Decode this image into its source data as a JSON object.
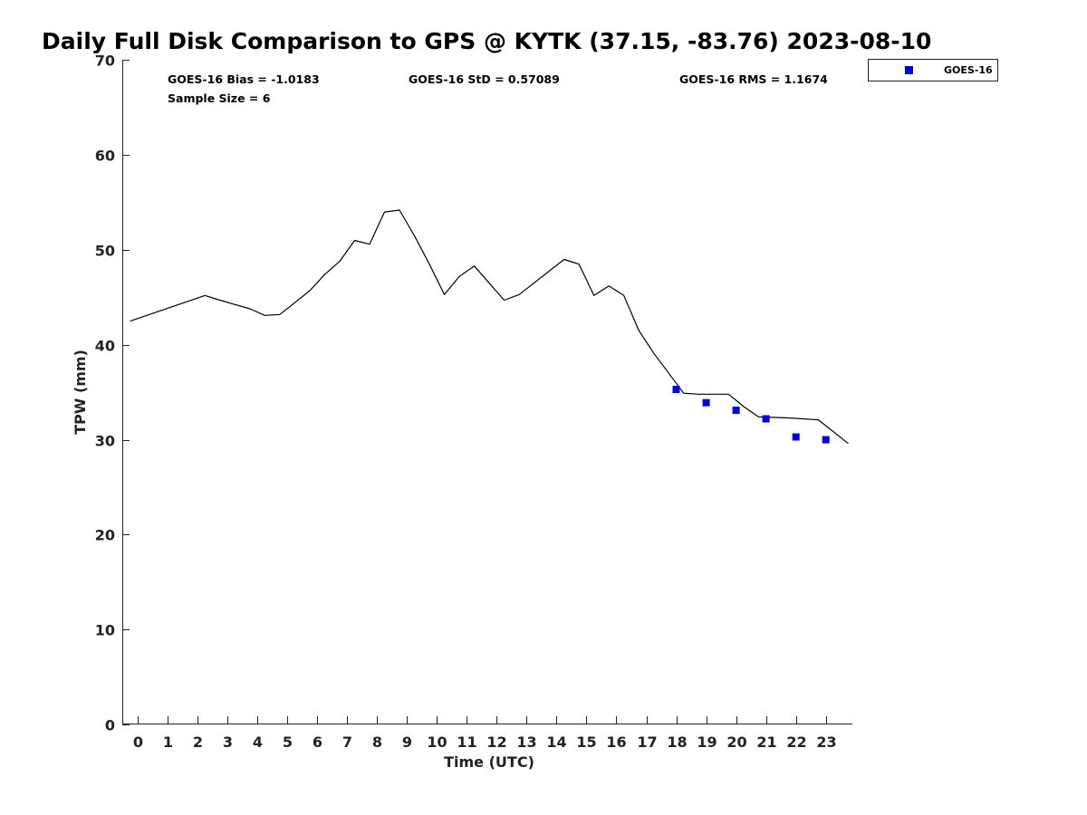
{
  "chart_data": {
    "type": "line",
    "title": "Daily Full Disk Comparison to GPS @ KYTK (37.15, -83.76) 2023-08-10",
    "xlabel": "Time (UTC)",
    "ylabel": "TPW (mm)",
    "xlim": [
      -0.5,
      23.75
    ],
    "ylim": [
      0,
      70
    ],
    "xticks": [
      0,
      1,
      2,
      3,
      4,
      5,
      6,
      7,
      8,
      9,
      10,
      11,
      12,
      13,
      14,
      15,
      16,
      17,
      18,
      19,
      20,
      21,
      22,
      23
    ],
    "yticks": [
      0,
      10,
      20,
      30,
      40,
      50,
      60,
      70
    ],
    "grid": false,
    "legend_position": "top-right",
    "stats": {
      "bias": "GOES-16 Bias = -1.0183",
      "std": "GOES-16 StD = 0.57089",
      "rms": "GOES-16 RMS = 1.1674",
      "sample": "Sample Size = 6"
    },
    "series": [
      {
        "type": "line",
        "color": "#000000",
        "x": [
          -0.25,
          2.25,
          2.75,
          3.75,
          4.25,
          4.75,
          5.75,
          6.25,
          6.75,
          7.25,
          7.75,
          8.25,
          8.75,
          9.25,
          9.75,
          10.25,
          10.75,
          11.25,
          12.25,
          12.75,
          14.25,
          14.75,
          15.25,
          15.75,
          16.25,
          16.75,
          17.25,
          17.75,
          18.25,
          18.75,
          19.75,
          20.25,
          20.75,
          21.75,
          22.75,
          23.75
        ],
        "y": [
          42.5,
          45.2,
          44.7,
          43.8,
          43.1,
          43.2,
          45.7,
          47.4,
          48.8,
          51.0,
          50.6,
          54.0,
          54.2,
          51.5,
          48.5,
          45.3,
          47.2,
          48.3,
          44.7,
          45.3,
          49.0,
          48.5,
          45.2,
          46.2,
          45.2,
          41.5,
          39.1,
          37.0,
          34.9,
          34.8,
          34.8,
          33.5,
          32.4,
          32.3,
          32.1,
          29.6
        ]
      },
      {
        "name": "GOES-16",
        "type": "scatter",
        "color": "#0000e0",
        "x": [
          18,
          19,
          20,
          21,
          22,
          23
        ],
        "y": [
          35.3,
          33.9,
          33.1,
          32.2,
          30.3,
          30.0
        ]
      }
    ]
  }
}
